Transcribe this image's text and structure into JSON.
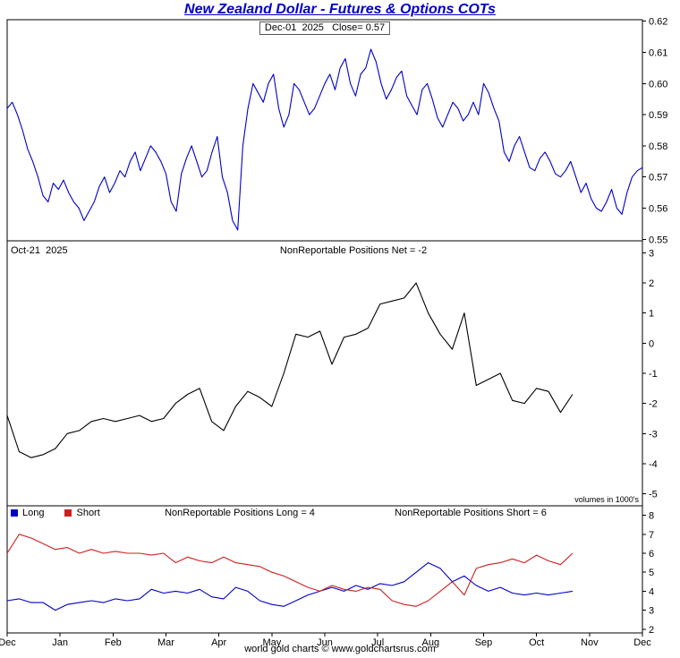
{
  "title": "New Zealand Dollar - Futures & Options COTs",
  "footer": "world gold charts © www.goldchartsrus.com",
  "colors": {
    "title": "#0000c8",
    "price_line": "#0000c8",
    "net_line": "#000000",
    "long_line": "#0000c8",
    "short_line": "#cc2020",
    "axis": "#000000"
  },
  "x_labels": [
    "Dec",
    "Jan",
    "Feb",
    "Mar",
    "Apr",
    "May",
    "Jun",
    "Jul",
    "Aug",
    "Sep",
    "Oct",
    "Nov",
    "Dec"
  ],
  "panels": {
    "price": {
      "annotation": "Dec-01  2025   Close= 0.57"
    },
    "net": {
      "date_label": "Oct-21  2025",
      "annotation": "NonReportable Positions Net = -2",
      "note": "volumes in 1000's"
    },
    "volumes": {
      "legend_long": "Long",
      "legend_short": "Short",
      "annotation_long": "NonReportable Positions Long = 4",
      "annotation_short": "NonReportable Positions Short = 6"
    }
  },
  "chart_data": [
    {
      "panel": "price",
      "type": "line",
      "name": "NZD futures price",
      "color": "#0000c8",
      "ylim": [
        0.55,
        0.62
      ],
      "yticks": [
        "0.62",
        "0.61",
        "0.60",
        "0.59",
        "0.58",
        "0.57",
        "0.56",
        "0.55"
      ],
      "x_span": 1.0,
      "last_date": "Dec-01 2025",
      "last_value": 0.57,
      "values": [
        0.592,
        0.594,
        0.59,
        0.585,
        0.579,
        0.575,
        0.57,
        0.564,
        0.562,
        0.568,
        0.566,
        0.569,
        0.565,
        0.562,
        0.56,
        0.556,
        0.559,
        0.562,
        0.567,
        0.57,
        0.565,
        0.568,
        0.572,
        0.57,
        0.575,
        0.578,
        0.572,
        0.576,
        0.58,
        0.578,
        0.575,
        0.571,
        0.562,
        0.559,
        0.571,
        0.576,
        0.58,
        0.575,
        0.57,
        0.572,
        0.578,
        0.583,
        0.57,
        0.565,
        0.556,
        0.553,
        0.58,
        0.592,
        0.6,
        0.597,
        0.594,
        0.6,
        0.603,
        0.592,
        0.586,
        0.59,
        0.6,
        0.598,
        0.594,
        0.59,
        0.592,
        0.596,
        0.6,
        0.603,
        0.598,
        0.605,
        0.608,
        0.6,
        0.596,
        0.603,
        0.605,
        0.611,
        0.607,
        0.6,
        0.595,
        0.598,
        0.602,
        0.604,
        0.596,
        0.593,
        0.59,
        0.598,
        0.6,
        0.595,
        0.589,
        0.586,
        0.59,
        0.594,
        0.592,
        0.588,
        0.59,
        0.594,
        0.59,
        0.6,
        0.597,
        0.592,
        0.588,
        0.578,
        0.575,
        0.58,
        0.583,
        0.578,
        0.573,
        0.572,
        0.576,
        0.578,
        0.575,
        0.571,
        0.57,
        0.572,
        0.575,
        0.57,
        0.565,
        0.568,
        0.563,
        0.56,
        0.559,
        0.562,
        0.566,
        0.56,
        0.558,
        0.565,
        0.57,
        0.572,
        0.573
      ]
    },
    {
      "panel": "net",
      "type": "line",
      "name": "NonReportable Positions Net",
      "color": "#000000",
      "ylim": [
        -5,
        3
      ],
      "yticks": [
        "3",
        "2",
        "1",
        "0",
        "-1",
        "-2",
        "-3",
        "-4",
        "-5"
      ],
      "x_span": 0.89,
      "last_date": "Oct-21 2025",
      "last_value": -2,
      "units": "volumes in 1000's",
      "values": [
        -2.4,
        -3.6,
        -3.8,
        -3.7,
        -3.5,
        -3.0,
        -2.9,
        -2.6,
        -2.5,
        -2.6,
        -2.5,
        -2.4,
        -2.6,
        -2.5,
        -2.0,
        -1.7,
        -1.5,
        -2.6,
        -2.9,
        -2.1,
        -1.6,
        -1.8,
        -2.1,
        -1.0,
        0.3,
        0.2,
        0.4,
        -0.7,
        0.2,
        0.3,
        0.5,
        1.3,
        1.4,
        1.5,
        2.0,
        1.0,
        0.3,
        -0.2,
        1.0,
        -1.4,
        -1.2,
        -1.0,
        -1.9,
        -2.0,
        -1.5,
        -1.6,
        -2.3,
        -1.7
      ]
    },
    {
      "panel": "volumes",
      "type": "line",
      "ylim": [
        2,
        8
      ],
      "yticks": [
        "8",
        "7",
        "6",
        "5",
        "4",
        "3",
        "2"
      ],
      "x_span": 0.89,
      "series": [
        {
          "name": "Long",
          "color": "#0000c8",
          "last_value": 4,
          "values": [
            3.5,
            3.6,
            3.4,
            3.4,
            3.0,
            3.3,
            3.4,
            3.5,
            3.4,
            3.6,
            3.5,
            3.6,
            4.1,
            3.9,
            4.0,
            3.9,
            4.1,
            3.7,
            3.6,
            4.2,
            4.0,
            3.5,
            3.3,
            3.2,
            3.5,
            3.8,
            4.0,
            4.2,
            4.0,
            4.3,
            4.1,
            4.4,
            4.3,
            4.5,
            5.0,
            5.5,
            5.2,
            4.5,
            4.8,
            4.3,
            4.0,
            4.2,
            3.9,
            3.8,
            3.9,
            3.8,
            3.9,
            4.0
          ]
        },
        {
          "name": "Short",
          "color": "#cc2020",
          "last_value": 6,
          "values": [
            6.0,
            7.0,
            6.8,
            6.5,
            6.2,
            6.3,
            6.0,
            6.2,
            6.0,
            6.1,
            6.0,
            6.0,
            5.9,
            6.0,
            5.5,
            5.8,
            5.6,
            5.5,
            5.8,
            5.5,
            5.4,
            5.3,
            5.0,
            4.8,
            4.5,
            4.2,
            4.0,
            4.3,
            4.1,
            4.0,
            4.2,
            4.1,
            3.5,
            3.3,
            3.2,
            3.5,
            4.0,
            4.5,
            3.8,
            5.2,
            5.4,
            5.5,
            5.7,
            5.5,
            5.9,
            5.6,
            5.4,
            6.0
          ]
        }
      ]
    }
  ]
}
